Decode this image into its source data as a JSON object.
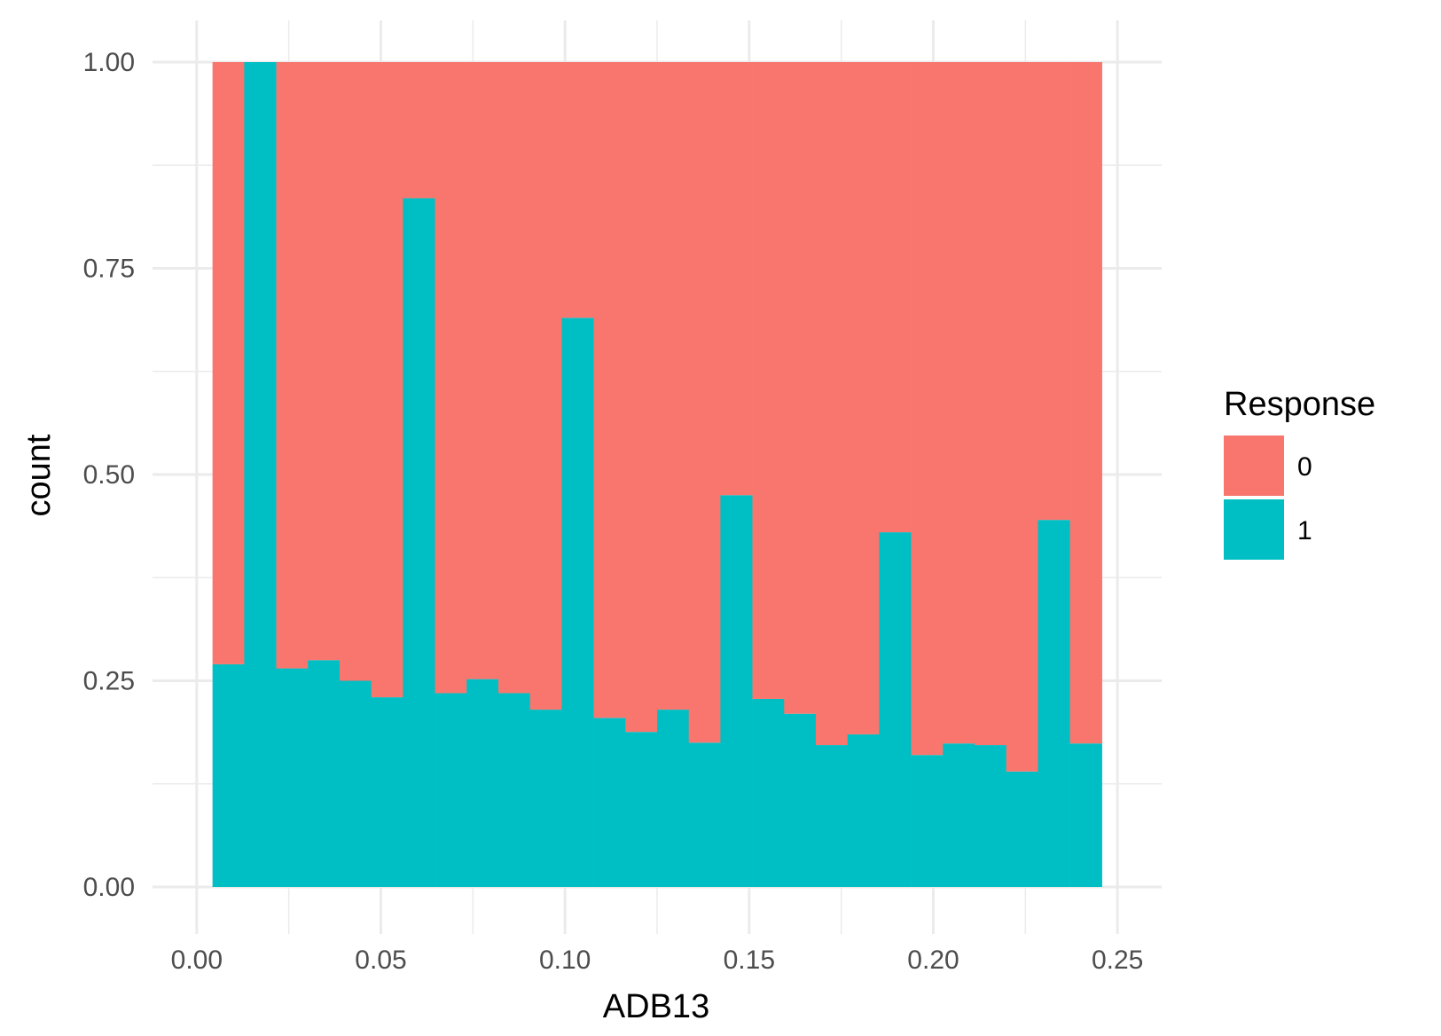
{
  "chart_data": {
    "type": "bar",
    "stacked": true,
    "position": "fill",
    "xlabel": "ADB13",
    "ylabel": "count",
    "xlim": [
      -0.012,
      0.262
    ],
    "ylim": [
      -0.055,
      1.0
    ],
    "x_ticks": [
      0.0,
      0.05,
      0.1,
      0.15,
      0.2,
      0.25
    ],
    "x_tick_labels": [
      "0.00",
      "0.05",
      "0.10",
      "0.15",
      "0.20",
      "0.25"
    ],
    "y_ticks": [
      0.0,
      0.25,
      0.5,
      0.75,
      1.0
    ],
    "y_tick_labels": [
      "0.00",
      "0.25",
      "0.50",
      "0.75",
      "1.00"
    ],
    "grid": true,
    "legend": {
      "title": "Response",
      "position": "right",
      "entries": [
        {
          "label": "0",
          "color": "#F8766D"
        },
        {
          "label": "1",
          "color": "#00BFC4"
        }
      ]
    },
    "bin_width": 0.00862,
    "x": [
      0.0086,
      0.0172,
      0.0259,
      0.0345,
      0.0431,
      0.0517,
      0.0603,
      0.069,
      0.0776,
      0.0862,
      0.0948,
      0.1034,
      0.1121,
      0.1207,
      0.1293,
      0.1379,
      0.1465,
      0.1552,
      0.1638,
      0.1724,
      0.181,
      0.1896,
      0.1983,
      0.2069,
      0.2155,
      0.2241,
      0.2327,
      0.2414
    ],
    "series": [
      {
        "name": "0",
        "color": "#F8766D",
        "values": [
          0.73,
          0.0,
          0.735,
          0.725,
          0.75,
          0.77,
          0.165,
          0.765,
          0.748,
          0.765,
          0.785,
          0.31,
          0.795,
          0.812,
          0.785,
          0.825,
          0.525,
          0.772,
          0.79,
          0.828,
          0.815,
          0.57,
          0.84,
          0.826,
          0.828,
          0.86,
          0.555,
          0.826
        ]
      },
      {
        "name": "1",
        "color": "#00BFC4",
        "values": [
          0.27,
          1.0,
          0.265,
          0.275,
          0.25,
          0.23,
          0.835,
          0.235,
          0.252,
          0.235,
          0.215,
          0.69,
          0.205,
          0.188,
          0.215,
          0.175,
          0.475,
          0.228,
          0.21,
          0.172,
          0.185,
          0.43,
          0.16,
          0.174,
          0.172,
          0.14,
          0.445,
          0.174
        ]
      }
    ]
  }
}
